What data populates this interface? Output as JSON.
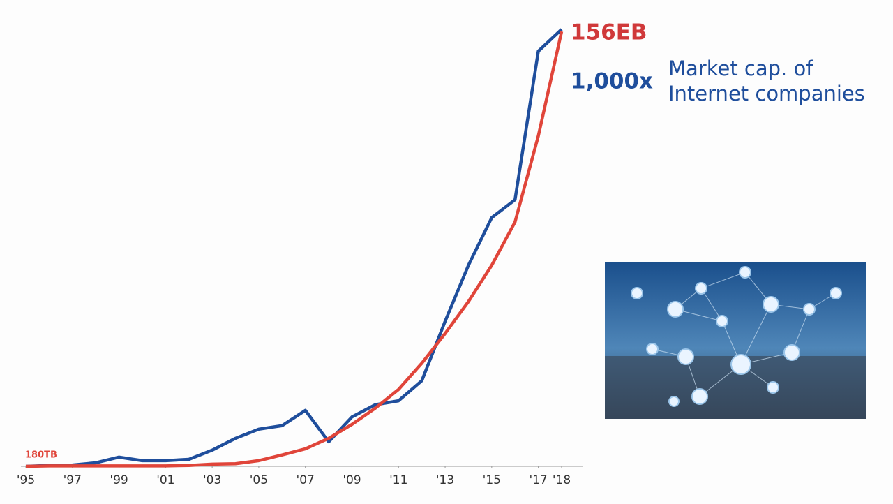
{
  "chart_data": {
    "type": "line",
    "x": [
      1995,
      1996,
      1997,
      1998,
      1999,
      2000,
      2001,
      2002,
      2003,
      2004,
      2005,
      2006,
      2007,
      2008,
      2009,
      2010,
      2011,
      2012,
      2013,
      2014,
      2015,
      2016,
      2017,
      2018
    ],
    "xlim": [
      1995,
      2018
    ],
    "xticks": [
      {
        "value": 1995,
        "label": "'95"
      },
      {
        "value": 1997,
        "label": "'97"
      },
      {
        "value": 1999,
        "label": "'99"
      },
      {
        "value": 2001,
        "label": "'01"
      },
      {
        "value": 2003,
        "label": "'03"
      },
      {
        "value": 2005,
        "label": "'05"
      },
      {
        "value": 2007,
        "label": "'07"
      },
      {
        "value": 2009,
        "label": "'09"
      },
      {
        "value": 2011,
        "label": "'11"
      },
      {
        "value": 2013,
        "label": "'13"
      },
      {
        "value": 2015,
        "label": "'15"
      },
      {
        "value": 2017,
        "label": "'17"
      },
      {
        "value": 2018,
        "label": "'18"
      }
    ],
    "ylim": [
      0,
      100
    ],
    "series": [
      {
        "color": "#1f4e9c",
        "values": [
          0,
          0.2,
          0.3,
          0.8,
          2.1,
          1.3,
          1.3,
          1.6,
          3.7,
          6.4,
          8.5,
          9.3,
          12.8,
          5.6,
          11.3,
          14.1,
          15.0,
          19.6,
          33.2,
          46.0,
          56.9,
          61.0,
          95.0,
          100
        ]
      },
      {
        "color": "#e0453a",
        "values": [
          0,
          0.1,
          0.1,
          0.1,
          0.1,
          0.1,
          0.1,
          0.2,
          0.5,
          0.6,
          1.3,
          2.6,
          4.0,
          6.4,
          9.6,
          13.3,
          17.6,
          23.6,
          30.4,
          37.7,
          46.0,
          55.9,
          75.6,
          99.5
        ]
      }
    ],
    "annotations": {
      "start_label": "180TB",
      "end_label": "156EB",
      "multiplier": "1,000x",
      "caption_line1": "Market cap. of",
      "caption_line2": "Internet companies"
    }
  }
}
